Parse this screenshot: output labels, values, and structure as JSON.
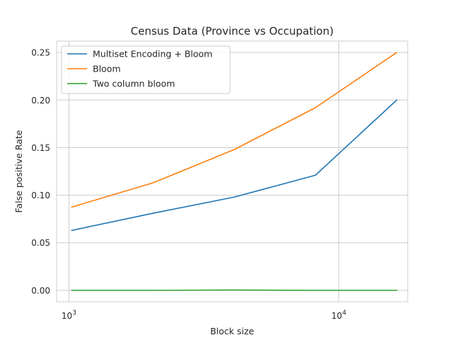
{
  "chart_data": {
    "type": "line",
    "title": "Census Data (Province vs Occupation)",
    "xlabel": "Block size",
    "ylabel": "False positive Rate",
    "x_scale": "log",
    "xlim": [
      900,
      18000
    ],
    "ylim": [
      -0.012,
      0.262
    ],
    "grid": true,
    "legend_position": "top-left",
    "x_ticks": [
      {
        "value": 1000,
        "base": "10",
        "exp": "3"
      },
      {
        "value": 10000,
        "base": "10",
        "exp": "4"
      }
    ],
    "y_ticks": [
      {
        "value": 0.0,
        "label": "0.00"
      },
      {
        "value": 0.05,
        "label": "0.05"
      },
      {
        "value": 0.1,
        "label": "0.10"
      },
      {
        "value": 0.15,
        "label": "0.15"
      },
      {
        "value": 0.2,
        "label": "0.20"
      },
      {
        "value": 0.25,
        "label": "0.25"
      }
    ],
    "x": [
      1024,
      2048,
      4096,
      8192,
      16384
    ],
    "series": [
      {
        "name": "Multiset Encoding + Bloom",
        "color": "#1f77b4",
        "values": [
          0.063,
          0.081,
          0.098,
          0.121,
          0.2
        ]
      },
      {
        "name": "Bloom",
        "color": "#ff7f0e",
        "values": [
          0.0875,
          0.113,
          0.148,
          0.192,
          0.25
        ]
      },
      {
        "name": "Two column bloom",
        "color": "#2ca02c",
        "values": [
          0.0,
          0.0,
          0.0003,
          0.0,
          0.0
        ]
      }
    ]
  }
}
